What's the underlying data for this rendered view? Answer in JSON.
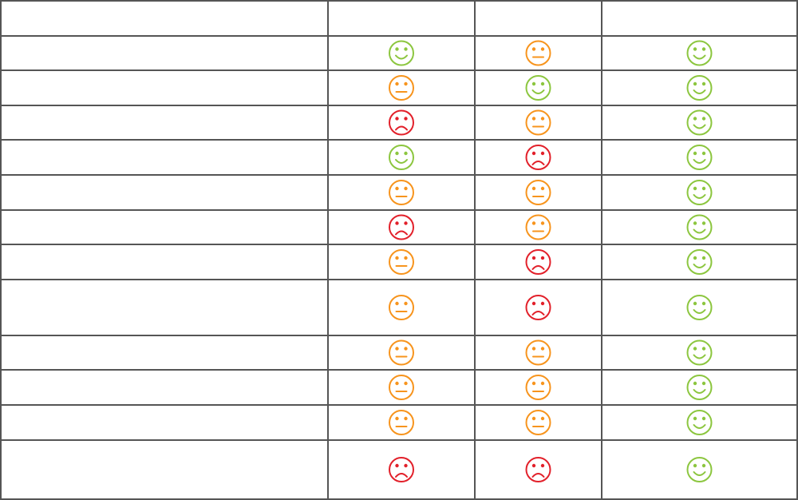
{
  "table": {
    "header": [
      "",
      "",
      "",
      ""
    ],
    "rows": [
      {
        "label": "",
        "ratings": [
          "happy",
          "neutral",
          "happy"
        ]
      },
      {
        "label": "",
        "ratings": [
          "neutral",
          "happy",
          "happy"
        ]
      },
      {
        "label": "",
        "ratings": [
          "sad",
          "neutral",
          "happy"
        ]
      },
      {
        "label": "",
        "ratings": [
          "happy",
          "sad",
          "happy"
        ]
      },
      {
        "label": "",
        "ratings": [
          "neutral",
          "neutral",
          "happy"
        ]
      },
      {
        "label": "",
        "ratings": [
          "sad",
          "neutral",
          "happy"
        ]
      },
      {
        "label": "",
        "ratings": [
          "neutral",
          "sad",
          "happy"
        ]
      },
      {
        "label": "",
        "ratings": [
          "neutral",
          "sad",
          "happy"
        ]
      },
      {
        "label": "",
        "ratings": [
          "neutral",
          "neutral",
          "happy"
        ]
      },
      {
        "label": "",
        "ratings": [
          "neutral",
          "neutral",
          "happy"
        ]
      },
      {
        "label": "",
        "ratings": [
          "neutral",
          "neutral",
          "happy"
        ]
      },
      {
        "label": "",
        "ratings": [
          "sad",
          "sad",
          "happy"
        ]
      }
    ]
  },
  "colors": {
    "happy": "#8cc63f",
    "neutral": "#f7941d",
    "sad": "#e2202a",
    "grid": "#555555"
  },
  "icons": {
    "happy": "happy-face-icon",
    "neutral": "neutral-face-icon",
    "sad": "sad-face-icon"
  }
}
